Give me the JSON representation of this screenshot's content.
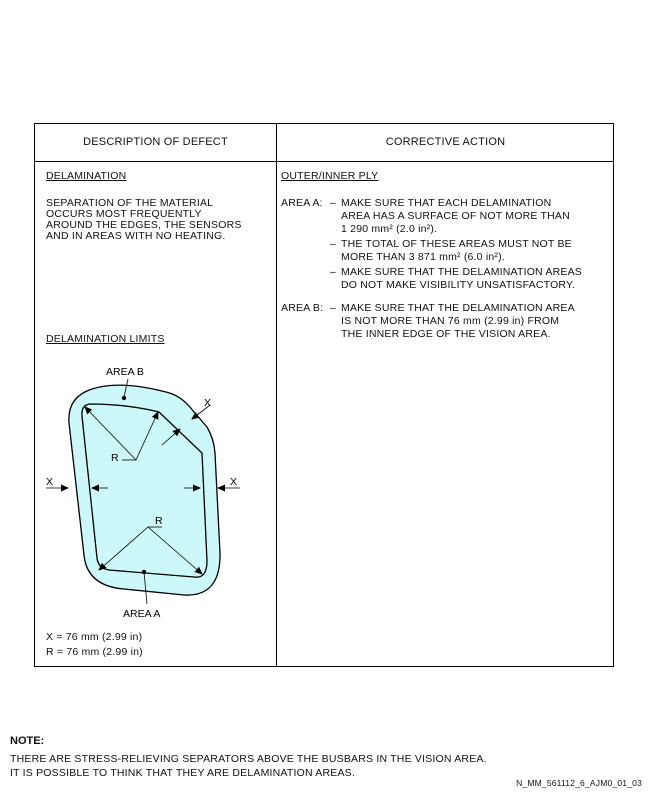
{
  "table": {
    "header_left": "DESCRIPTION OF DEFECT",
    "header_right": "CORRECTIVE ACTION"
  },
  "defect": {
    "title": "DELAMINATION",
    "description_lines": [
      "SEPARATION OF THE MATERIAL",
      "OCCURS MOST FREQUENTLY",
      "AROUND THE EDGES, THE SENSORS",
      "AND IN AREAS WITH NO HEATING."
    ],
    "limits_title": "DELAMINATION LIMITS"
  },
  "diagram": {
    "area_b_label": "AREA B",
    "area_a_label": "AREA A",
    "x_label": "X",
    "r_label": "R",
    "colors": {
      "fill": "#cdf8fa",
      "stroke": "#000000"
    }
  },
  "legend": {
    "x_value": "X = 76 mm (2.99 in)",
    "r_value": "R = 76 mm (2.99 in)"
  },
  "action": {
    "heading": "OUTER/INNER PLY",
    "area_a_label": "AREA A:",
    "area_a_items": [
      [
        "MAKE SURE THAT EACH DELAMINATION",
        "AREA HAS A SURFACE OF NOT MORE THAN",
        "1 290 mm² (2.0 in²)."
      ],
      [
        "THE TOTAL OF THESE AREAS MUST NOT BE",
        "MORE THAN 3 871 mm² (6.0 in²)."
      ],
      [
        "MAKE SURE THAT THE DELAMINATION AREAS",
        "DO NOT MAKE VISIBILITY UNSATISFACTORY."
      ]
    ],
    "area_b_label": "AREA B:",
    "area_b_items": [
      [
        "MAKE SURE THAT THE DELAMINATION AREA",
        "IS NOT MORE THAN 76 mm (2.99 in) FROM",
        "THE INNER EDGE OF THE VISION AREA."
      ]
    ],
    "dash": "–"
  },
  "note": {
    "title": "NOTE:",
    "line1": "THERE ARE STRESS-RELIEVING SEPARATORS ABOVE THE BUSBARS IN THE VISION AREA.",
    "line2": "IT IS POSSIBLE TO THINK THAT THEY ARE DELAMINATION AREAS."
  },
  "reference": "N_MM_561112_6_AJM0_01_03"
}
